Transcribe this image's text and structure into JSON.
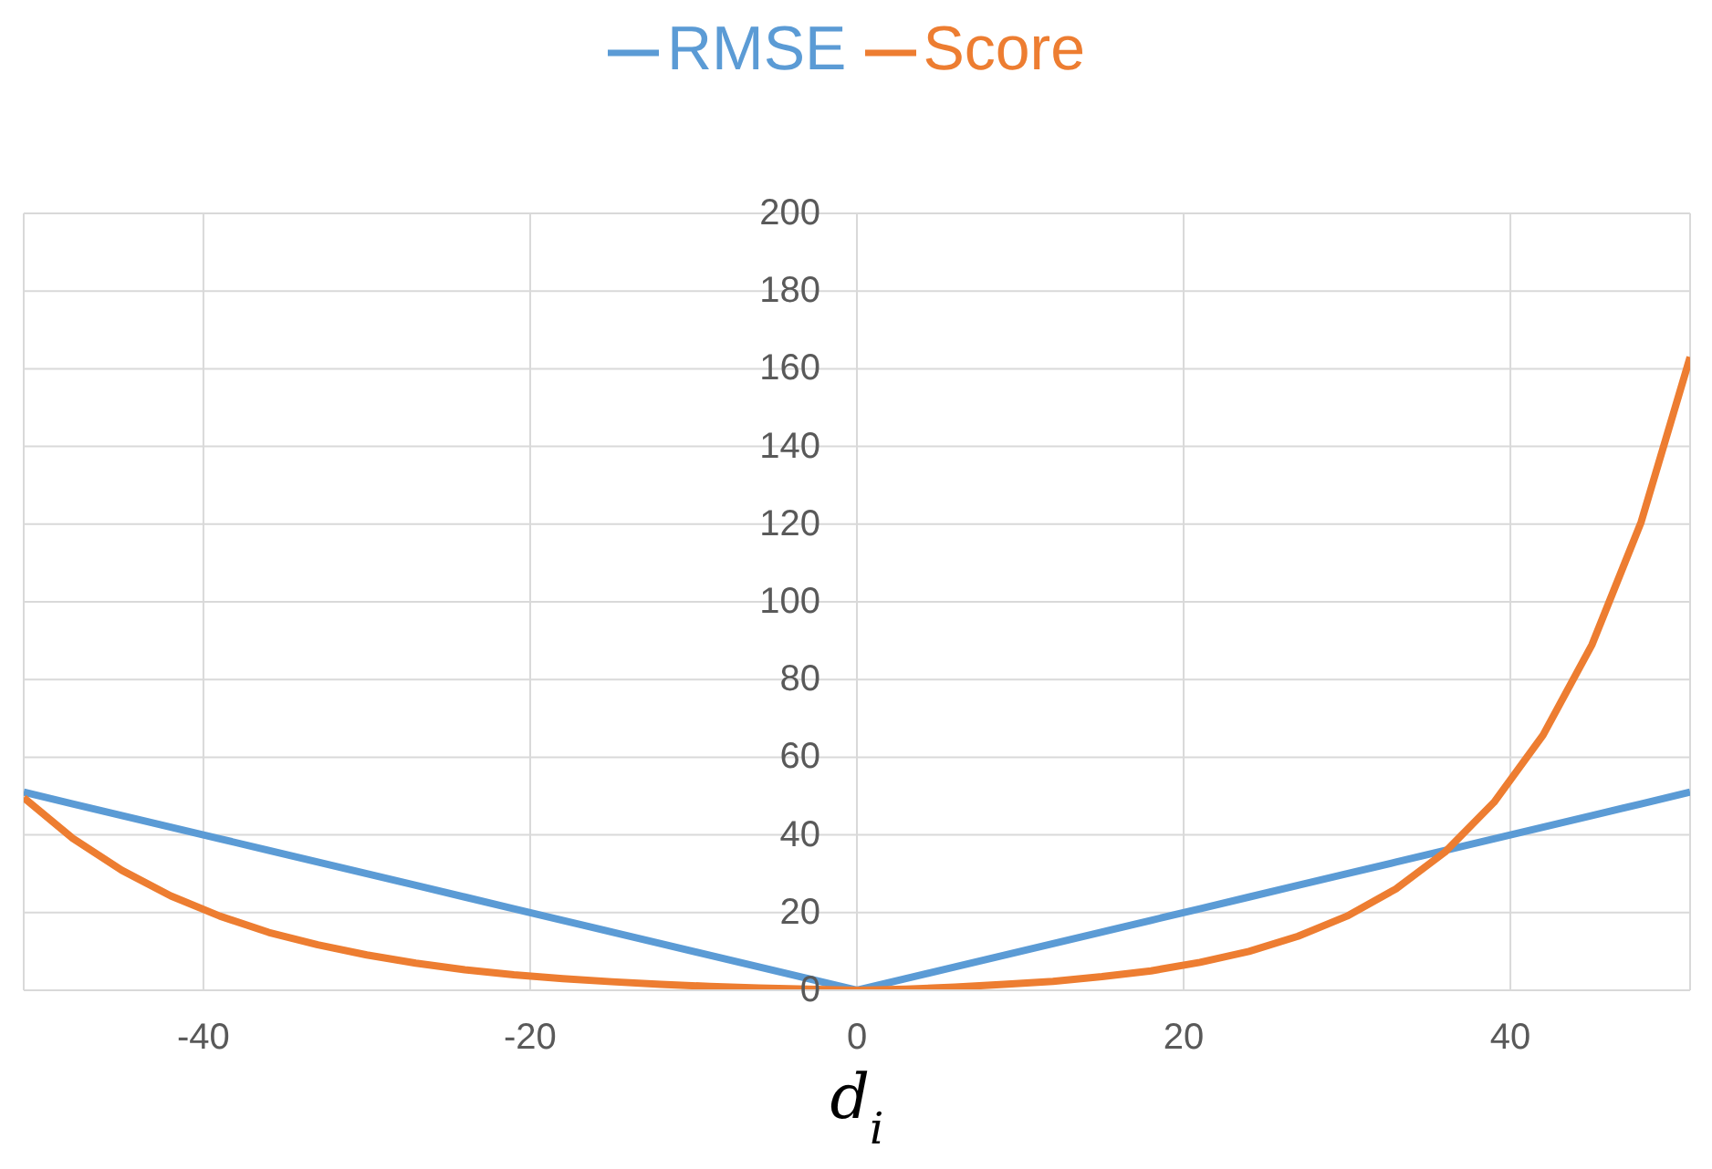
{
  "chart_data": {
    "type": "line",
    "xlabel": "d$_{i}$",
    "x": [
      -51,
      -48,
      -45,
      -42,
      -39,
      -36,
      -33,
      -30,
      -27,
      -24,
      -21,
      -18,
      -15,
      -12,
      -9,
      -6,
      -3,
      0,
      3,
      6,
      9,
      12,
      15,
      18,
      21,
      24,
      27,
      30,
      33,
      36,
      39,
      42,
      45,
      48,
      51
    ],
    "series": [
      {
        "name": "RMSE",
        "color": "#5b9bd5",
        "values": [
          51,
          48,
          45,
          42,
          39,
          36,
          33,
          30,
          27,
          24,
          21,
          18,
          15,
          12,
          9,
          6,
          3,
          0,
          3,
          6,
          9,
          12,
          15,
          18,
          21,
          24,
          27,
          30,
          33,
          36,
          39,
          42,
          45,
          48,
          51
        ]
      },
      {
        "name": "Score",
        "color": "#ed7d31",
        "values": [
          49.6,
          39.1,
          30.9,
          24.3,
          19.1,
          14.9,
          11.7,
          9.1,
          7.0,
          5.3,
          4.0,
          3.0,
          2.2,
          1.5,
          1.0,
          0.6,
          0.3,
          0,
          0.3,
          0.8,
          1.5,
          2.3,
          3.5,
          5.0,
          7.2,
          10.0,
          13.9,
          19.1,
          26.1,
          35.6,
          48.4,
          65.7,
          89.0,
          120.5,
          163.0
        ]
      }
    ],
    "xlim": [
      -51,
      51
    ],
    "xticks": [
      -40,
      -20,
      0,
      20,
      40
    ],
    "ylim": [
      0,
      200
    ],
    "yticks": [
      0,
      20,
      40,
      60,
      80,
      100,
      120,
      140,
      160,
      180,
      200
    ],
    "grid": true,
    "legend": "top",
    "marker": "none",
    "line_style": "solid"
  }
}
